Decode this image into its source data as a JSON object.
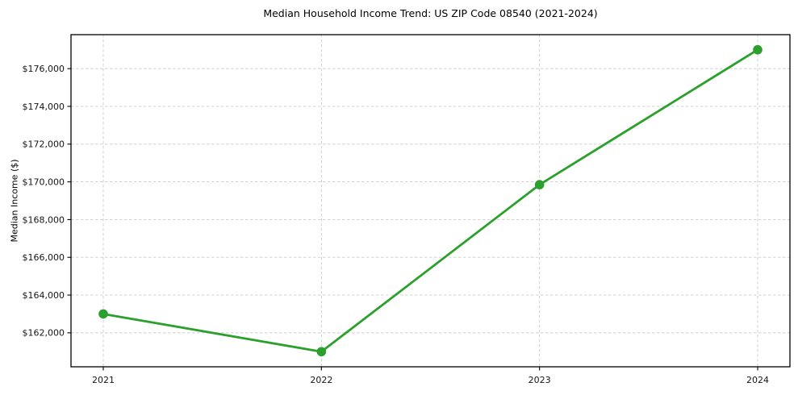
{
  "chart_data": {
    "type": "line",
    "title": "Median Household Income Trend: US ZIP Code 08540 (2021-2024)",
    "ylabel": "Median Income ($)",
    "xlabel": "",
    "categories": [
      "2021",
      "2022",
      "2023",
      "2024"
    ],
    "series": [
      {
        "name": "Median Household Income",
        "values": [
          163000,
          161000,
          169850,
          177000
        ]
      }
    ],
    "ylim": [
      160200,
      177800
    ],
    "yticks": [
      162000,
      164000,
      166000,
      168000,
      170000,
      172000,
      174000,
      176000
    ],
    "ytick_prefix": "$",
    "grid": true,
    "grid_style": "dashed",
    "legend_position": "none",
    "colors": {
      "line": "#2ca02c",
      "marker": "#2ca02c",
      "grid": "#cccccc",
      "spine": "#000000",
      "text": "#000000",
      "background": "#ffffff"
    }
  }
}
